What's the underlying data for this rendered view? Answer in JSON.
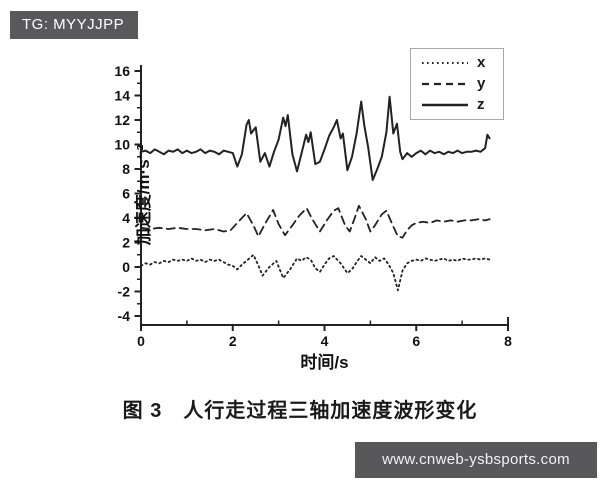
{
  "badge": {
    "text": "TG: MYYJJPP"
  },
  "watermark": {
    "text": "www.cnweb-ysbsports.com"
  },
  "caption": "图 3　人行走过程三轴加速度波形变化",
  "chart_data": {
    "type": "line",
    "title": "",
    "xlabel": "时间/s",
    "ylabel": "加速度/m·s⁻²",
    "xlim": [
      0,
      8
    ],
    "ylim": [
      -4,
      16
    ],
    "x_ticks": [
      0,
      2,
      4,
      6,
      8
    ],
    "x_minor_ticks": [
      1,
      3,
      5,
      7
    ],
    "y_ticks": [
      16,
      14,
      12,
      10,
      8,
      6,
      4,
      2,
      0,
      -2,
      -4
    ],
    "y_minor_ticks": [
      15,
      13,
      11,
      9,
      7,
      5,
      3,
      1,
      -1,
      -3
    ],
    "grid": false,
    "legend_position": "top-right",
    "line_color": "#222222",
    "series": [
      {
        "name": "x",
        "style": "dotted",
        "points": [
          [
            0,
            0.1
          ],
          [
            0.1,
            0.3
          ],
          [
            0.2,
            0.2
          ],
          [
            0.3,
            0.4
          ],
          [
            0.4,
            0.3
          ],
          [
            0.5,
            0.5
          ],
          [
            0.6,
            0.4
          ],
          [
            0.7,
            0.6
          ],
          [
            0.8,
            0.5
          ],
          [
            0.9,
            0.6
          ],
          [
            1.0,
            0.5
          ],
          [
            1.1,
            0.7
          ],
          [
            1.2,
            0.5
          ],
          [
            1.3,
            0.6
          ],
          [
            1.4,
            0.4
          ],
          [
            1.5,
            0.6
          ],
          [
            1.6,
            0.5
          ],
          [
            1.7,
            0.6
          ],
          [
            1.8,
            0.4
          ],
          [
            1.9,
            0.2
          ],
          [
            2.0,
            0.1
          ],
          [
            2.1,
            -0.2
          ],
          [
            2.2,
            0.2
          ],
          [
            2.3,
            0.5
          ],
          [
            2.45,
            1.0
          ],
          [
            2.55,
            0.2
          ],
          [
            2.65,
            -0.7
          ],
          [
            2.8,
            0.0
          ],
          [
            2.95,
            0.5
          ],
          [
            3.1,
            -0.9
          ],
          [
            3.25,
            -0.2
          ],
          [
            3.4,
            0.7
          ],
          [
            3.5,
            0.5
          ],
          [
            3.6,
            0.8
          ],
          [
            3.7,
            0.6
          ],
          [
            3.8,
            -0.1
          ],
          [
            3.9,
            -0.4
          ],
          [
            4.0,
            0.2
          ],
          [
            4.1,
            0.7
          ],
          [
            4.2,
            0.9
          ],
          [
            4.35,
            0.3
          ],
          [
            4.5,
            -0.5
          ],
          [
            4.6,
            -0.2
          ],
          [
            4.7,
            0.4
          ],
          [
            4.8,
            0.9
          ],
          [
            4.9,
            0.6
          ],
          [
            5.0,
            0.3
          ],
          [
            5.1,
            0.8
          ],
          [
            5.2,
            0.5
          ],
          [
            5.3,
            0.7
          ],
          [
            5.4,
            0.2
          ],
          [
            5.5,
            -0.5
          ],
          [
            5.6,
            -1.9
          ],
          [
            5.7,
            -0.3
          ],
          [
            5.8,
            0.3
          ],
          [
            5.9,
            0.5
          ],
          [
            6.0,
            0.6
          ],
          [
            6.1,
            0.5
          ],
          [
            6.2,
            0.7
          ],
          [
            6.3,
            0.6
          ],
          [
            6.4,
            0.5
          ],
          [
            6.5,
            0.6
          ],
          [
            6.6,
            0.7
          ],
          [
            6.7,
            0.5
          ],
          [
            6.8,
            0.6
          ],
          [
            6.9,
            0.5
          ],
          [
            7.0,
            0.7
          ],
          [
            7.1,
            0.6
          ],
          [
            7.2,
            0.6
          ],
          [
            7.3,
            0.7
          ],
          [
            7.4,
            0.6
          ],
          [
            7.5,
            0.7
          ],
          [
            7.6,
            0.6
          ]
        ]
      },
      {
        "name": "y",
        "style": "dashed",
        "points": [
          [
            0,
            3.2
          ],
          [
            0.2,
            3.1
          ],
          [
            0.4,
            3.2
          ],
          [
            0.6,
            3.1
          ],
          [
            0.8,
            3.2
          ],
          [
            1.0,
            3.1
          ],
          [
            1.2,
            3.1
          ],
          [
            1.4,
            3.0
          ],
          [
            1.6,
            3.1
          ],
          [
            1.8,
            2.9
          ],
          [
            1.95,
            3.0
          ],
          [
            2.1,
            3.6
          ],
          [
            2.3,
            4.4
          ],
          [
            2.45,
            3.4
          ],
          [
            2.56,
            2.5
          ],
          [
            2.7,
            3.5
          ],
          [
            2.88,
            4.65
          ],
          [
            3.0,
            3.5
          ],
          [
            3.14,
            2.6
          ],
          [
            3.3,
            3.4
          ],
          [
            3.45,
            4.2
          ],
          [
            3.61,
            4.8
          ],
          [
            3.75,
            3.8
          ],
          [
            3.9,
            2.9
          ],
          [
            4.05,
            3.8
          ],
          [
            4.2,
            4.6
          ],
          [
            4.3,
            4.8
          ],
          [
            4.45,
            3.4
          ],
          [
            4.55,
            2.9
          ],
          [
            4.65,
            3.9
          ],
          [
            4.75,
            5.0
          ],
          [
            4.9,
            3.9
          ],
          [
            5.0,
            2.9
          ],
          [
            5.1,
            3.4
          ],
          [
            5.25,
            4.3
          ],
          [
            5.35,
            4.6
          ],
          [
            5.5,
            3.3
          ],
          [
            5.6,
            2.5
          ],
          [
            5.7,
            2.4
          ],
          [
            5.8,
            3.0
          ],
          [
            5.9,
            3.4
          ],
          [
            6.0,
            3.6
          ],
          [
            6.15,
            3.7
          ],
          [
            6.3,
            3.6
          ],
          [
            6.45,
            3.8
          ],
          [
            6.6,
            3.7
          ],
          [
            6.75,
            3.8
          ],
          [
            6.9,
            3.7
          ],
          [
            7.05,
            3.8
          ],
          [
            7.2,
            3.8
          ],
          [
            7.35,
            3.9
          ],
          [
            7.5,
            3.8
          ],
          [
            7.6,
            3.9
          ]
        ]
      },
      {
        "name": "z",
        "style": "solid",
        "points": [
          [
            0,
            9.4
          ],
          [
            0.1,
            9.5
          ],
          [
            0.2,
            9.3
          ],
          [
            0.3,
            9.6
          ],
          [
            0.4,
            9.4
          ],
          [
            0.5,
            9.2
          ],
          [
            0.6,
            9.5
          ],
          [
            0.7,
            9.4
          ],
          [
            0.8,
            9.6
          ],
          [
            0.9,
            9.3
          ],
          [
            1.0,
            9.5
          ],
          [
            1.1,
            9.3
          ],
          [
            1.2,
            9.4
          ],
          [
            1.3,
            9.6
          ],
          [
            1.4,
            9.3
          ],
          [
            1.5,
            9.5
          ],
          [
            1.6,
            9.4
          ],
          [
            1.7,
            9.2
          ],
          [
            1.8,
            9.5
          ],
          [
            1.9,
            9.4
          ],
          [
            2.0,
            9.3
          ],
          [
            2.1,
            8.2
          ],
          [
            2.2,
            9.2
          ],
          [
            2.3,
            11.6
          ],
          [
            2.35,
            12.0
          ],
          [
            2.4,
            10.9
          ],
          [
            2.5,
            11.4
          ],
          [
            2.6,
            8.6
          ],
          [
            2.7,
            9.3
          ],
          [
            2.8,
            8.2
          ],
          [
            2.9,
            9.4
          ],
          [
            3.0,
            10.4
          ],
          [
            3.1,
            12.2
          ],
          [
            3.15,
            11.5
          ],
          [
            3.2,
            12.4
          ],
          [
            3.3,
            9.2
          ],
          [
            3.4,
            7.8
          ],
          [
            3.5,
            9.3
          ],
          [
            3.6,
            10.8
          ],
          [
            3.65,
            10.2
          ],
          [
            3.7,
            11.0
          ],
          [
            3.8,
            8.4
          ],
          [
            3.9,
            8.6
          ],
          [
            4.0,
            9.6
          ],
          [
            4.1,
            10.7
          ],
          [
            4.2,
            11.4
          ],
          [
            4.27,
            12.0
          ],
          [
            4.35,
            10.5
          ],
          [
            4.4,
            10.9
          ],
          [
            4.5,
            7.9
          ],
          [
            4.6,
            9.0
          ],
          [
            4.7,
            10.9
          ],
          [
            4.8,
            13.5
          ],
          [
            4.87,
            11.5
          ],
          [
            4.95,
            9.8
          ],
          [
            5.05,
            7.1
          ],
          [
            5.15,
            8.0
          ],
          [
            5.25,
            9.0
          ],
          [
            5.35,
            11.0
          ],
          [
            5.42,
            13.9
          ],
          [
            5.5,
            10.9
          ],
          [
            5.58,
            11.7
          ],
          [
            5.65,
            9.4
          ],
          [
            5.7,
            8.8
          ],
          [
            5.8,
            9.3
          ],
          [
            5.9,
            9.0
          ],
          [
            6.0,
            9.3
          ],
          [
            6.1,
            9.5
          ],
          [
            6.2,
            9.2
          ],
          [
            6.3,
            9.5
          ],
          [
            6.4,
            9.3
          ],
          [
            6.5,
            9.4
          ],
          [
            6.6,
            9.2
          ],
          [
            6.7,
            9.4
          ],
          [
            6.8,
            9.3
          ],
          [
            6.9,
            9.5
          ],
          [
            7.0,
            9.3
          ],
          [
            7.1,
            9.4
          ],
          [
            7.2,
            9.4
          ],
          [
            7.3,
            9.5
          ],
          [
            7.4,
            9.4
          ],
          [
            7.5,
            9.7
          ],
          [
            7.55,
            10.8
          ],
          [
            7.6,
            10.5
          ]
        ]
      }
    ]
  }
}
